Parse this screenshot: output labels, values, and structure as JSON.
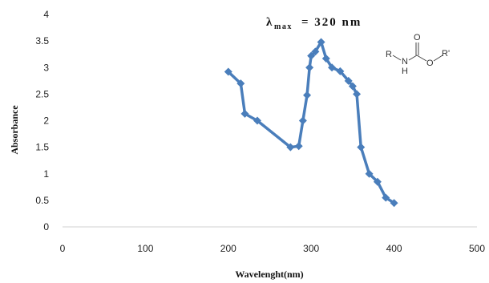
{
  "chart_data": {
    "type": "line",
    "title": "",
    "xlabel": "Wavelenght(nm)",
    "ylabel": "Absorbance",
    "xlim": [
      0,
      500
    ],
    "ylim": [
      0,
      4
    ],
    "x_ticks": [
      0,
      100,
      200,
      300,
      400,
      500
    ],
    "y_ticks": [
      0,
      0.5,
      1,
      1.5,
      2,
      2.5,
      3,
      3.5,
      4
    ],
    "x_tick_labels": [
      "0",
      "100",
      "200",
      "300",
      "400",
      "500"
    ],
    "y_tick_labels": [
      "0",
      "0.5",
      "1",
      "1.5",
      "2",
      "2.5",
      "3",
      "3.5",
      "4"
    ],
    "grid": false,
    "legend": "none",
    "series": [
      {
        "color": "#4a7ebb",
        "marker": "diamond",
        "x": [
          200,
          215,
          220,
          235,
          275,
          285,
          290,
          295,
          298,
          300,
          305,
          312,
          318,
          325,
          335,
          345,
          350,
          355,
          360,
          370,
          380,
          390,
          400
        ],
        "y": [
          2.92,
          2.7,
          2.13,
          2.0,
          1.5,
          1.52,
          2.0,
          2.48,
          3.0,
          3.22,
          3.3,
          3.48,
          3.17,
          3.0,
          2.93,
          2.75,
          2.65,
          2.5,
          1.5,
          1.0,
          0.85,
          0.55,
          0.45
        ]
      }
    ],
    "annotation": {
      "lambda_symbol": "λ",
      "subscript": "max",
      "equals_value": "= 320 nm"
    },
    "structure_labels": {
      "r": "R",
      "n": "N",
      "h": "H",
      "o_carbonyl": "O",
      "o_ester": "O",
      "r_prime": "R'"
    }
  }
}
